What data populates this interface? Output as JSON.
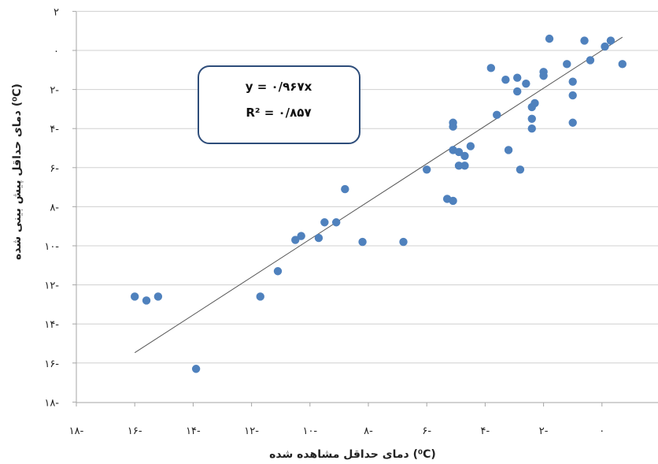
{
  "chart_data": {
    "type": "scatter",
    "xlabel": "دمای حداقل مشاهده شده (⁰C)",
    "ylabel": "دمای حداقل پیش بینی شده (⁰C)",
    "xlim": [
      -18,
      0
    ],
    "ylim": [
      -18,
      2
    ],
    "x_ticks": [
      -18,
      -16,
      -14,
      -12,
      -10,
      -8,
      -6,
      -4,
      -2,
      0
    ],
    "y_ticks": [
      -18,
      -16,
      -14,
      -12,
      -10,
      -8,
      -6,
      -4,
      -2,
      0,
      2
    ],
    "x_tick_labels": [
      "۱۸-",
      "۱۶-",
      "۱۴-",
      "۱۲-",
      "۱۰-",
      "۸-",
      "۶-",
      "۴-",
      "۲-",
      "۰"
    ],
    "y_tick_labels": [
      "۱۸-",
      "۱۶-",
      "۱۴-",
      "۱۲-",
      "۱۰-",
      "۸-",
      "۶-",
      "۴-",
      "۲-",
      "۰",
      "۲"
    ],
    "grid": "horizontal",
    "marker_color": "#4f81bd",
    "trendline": {
      "slope": 0.967,
      "intercept": 0,
      "x_range": [
        -16,
        0.7
      ]
    },
    "annotation": {
      "equation": "y = ۰/۹۶۷x",
      "r2": "R² = ۰/۸۵۷"
    },
    "points": [
      [
        -16,
        -12.6
      ],
      [
        -15.6,
        -12.8
      ],
      [
        -15.2,
        -12.6
      ],
      [
        -13.9,
        -16.3
      ],
      [
        -11.7,
        -12.6
      ],
      [
        -11.1,
        -11.3
      ],
      [
        -10.5,
        -9.7
      ],
      [
        -10.3,
        -9.5
      ],
      [
        -9.7,
        -9.6
      ],
      [
        -9.5,
        -8.8
      ],
      [
        -9.1,
        -8.8
      ],
      [
        -8.8,
        -7.1
      ],
      [
        -8.2,
        -9.8
      ],
      [
        -6.8,
        -9.8
      ],
      [
        -6,
        -6.1
      ],
      [
        -5.3,
        -7.6
      ],
      [
        -5.1,
        -7.7
      ],
      [
        -5.1,
        -5.1
      ],
      [
        -5.1,
        -3.7
      ],
      [
        -5.1,
        -3.9
      ],
      [
        -4.9,
        -5.2
      ],
      [
        -4.9,
        -5.9
      ],
      [
        -4.7,
        -5.9
      ],
      [
        -4.7,
        -5.4
      ],
      [
        -4.5,
        -4.9
      ],
      [
        -3.8,
        -0.9
      ],
      [
        -3.6,
        -3.3
      ],
      [
        -3.3,
        -1.5
      ],
      [
        -3.2,
        -5.1
      ],
      [
        -2.9,
        -1.4
      ],
      [
        -2.9,
        -2.1
      ],
      [
        -2.8,
        -6.1
      ],
      [
        -2.6,
        -1.7
      ],
      [
        -2.4,
        -2.9
      ],
      [
        -2.4,
        -3.5
      ],
      [
        -2.4,
        -4
      ],
      [
        -2.3,
        -2.7
      ],
      [
        -2,
        -1.1
      ],
      [
        -2,
        -1.3
      ],
      [
        -1.8,
        0.6
      ],
      [
        -1.2,
        -0.7
      ],
      [
        -1,
        -1.6
      ],
      [
        -1,
        -2.3
      ],
      [
        -1,
        -3.7
      ],
      [
        -0.6,
        0.5
      ],
      [
        -0.4,
        -0.5
      ],
      [
        0.1,
        0.2
      ],
      [
        0.3,
        0.5
      ],
      [
        0.7,
        -0.7
      ]
    ]
  }
}
